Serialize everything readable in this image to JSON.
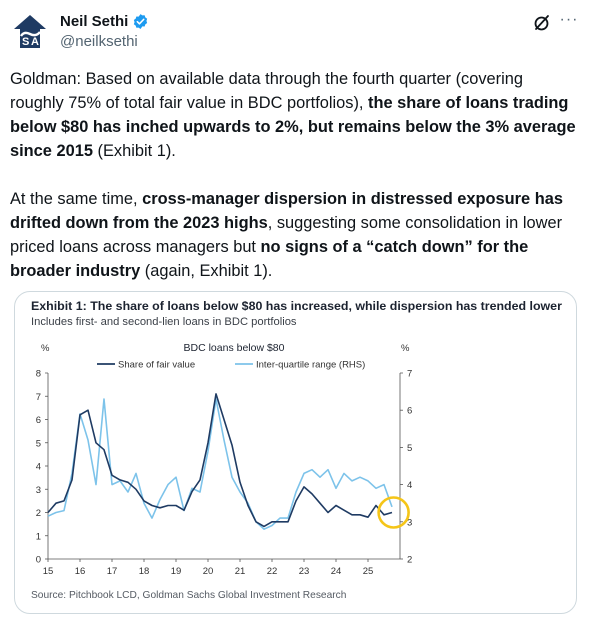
{
  "author": {
    "display_name": "Neil Sethi",
    "handle": "@neilksethi",
    "avatar_icon": "sa-logo-icon",
    "verified_color": "#1d9bf0"
  },
  "tweet": {
    "p1_seg1": "Goldman: Based on available data through the fourth quarter (covering roughly 75% of total fair value in BDC portfolios), ",
    "p1_bold1": "the share of loans trading below $80 has inched upwards to 2%, but remains below the 3% average since 2015",
    "p1_seg2": " (Exhibit 1).",
    "p2_seg1": "At the same time, ",
    "p2_bold1": "cross-manager dispersion in distressed exposure has drifted down from the 2023 highs",
    "p2_seg2": ", suggesting some consolidation in lower priced loans across managers but ",
    "p2_bold2": "no signs of a “catch down” for the broader industry",
    "p2_seg3": " (again, Exhibit 1)."
  },
  "exhibit": {
    "title": "Exhibit 1: The share of loans below $80 has increased, while dispersion has trended lower",
    "subtitle": "Includes first- and second-lien loans in BDC portfolios",
    "source": "Source: Pitchbook LCD, Goldman Sachs Global Investment Research"
  },
  "chart_data": {
    "type": "line",
    "title": "BDC loans below $80",
    "left_unit": "%",
    "right_unit": "%",
    "x_tick_labels": [
      "15",
      "16",
      "17",
      "18",
      "19",
      "20",
      "21",
      "22",
      "23",
      "24",
      "25"
    ],
    "x_range": [
      2015,
      2026
    ],
    "y_left_ticks": [
      "0",
      "1",
      "2",
      "3",
      "4",
      "5",
      "6",
      "7",
      "8"
    ],
    "y_left_range": [
      0,
      8
    ],
    "y_right_ticks": [
      "2",
      "3",
      "4",
      "5",
      "6",
      "7"
    ],
    "y_right_range": [
      2,
      7
    ],
    "grid": false,
    "legend_position": "top-center",
    "highlight": {
      "x": 2025.8,
      "y": 2.0,
      "color": "#f5c518"
    },
    "series": [
      {
        "name": "Share of fair value",
        "axis": "left",
        "color": "#1f3b63",
        "points": [
          [
            2015.0,
            2.0
          ],
          [
            2015.25,
            2.4
          ],
          [
            2015.5,
            2.5
          ],
          [
            2015.75,
            3.4
          ],
          [
            2016.0,
            6.2
          ],
          [
            2016.25,
            6.4
          ],
          [
            2016.5,
            5.0
          ],
          [
            2016.75,
            4.7
          ],
          [
            2017.0,
            3.6
          ],
          [
            2017.25,
            3.4
          ],
          [
            2017.5,
            3.3
          ],
          [
            2017.75,
            3.0
          ],
          [
            2018.0,
            2.5
          ],
          [
            2018.25,
            2.3
          ],
          [
            2018.5,
            2.2
          ],
          [
            2018.75,
            2.3
          ],
          [
            2019.0,
            2.3
          ],
          [
            2019.25,
            2.1
          ],
          [
            2019.5,
            2.9
          ],
          [
            2019.75,
            3.4
          ],
          [
            2020.0,
            5.0
          ],
          [
            2020.25,
            7.1
          ],
          [
            2020.5,
            6.0
          ],
          [
            2020.75,
            4.9
          ],
          [
            2021.0,
            3.3
          ],
          [
            2021.25,
            2.3
          ],
          [
            2021.5,
            1.6
          ],
          [
            2021.75,
            1.4
          ],
          [
            2022.0,
            1.6
          ],
          [
            2022.25,
            1.6
          ],
          [
            2022.5,
            1.6
          ],
          [
            2022.75,
            2.5
          ],
          [
            2023.0,
            3.1
          ],
          [
            2023.25,
            2.8
          ],
          [
            2023.5,
            2.4
          ],
          [
            2023.75,
            2.0
          ],
          [
            2024.0,
            2.3
          ],
          [
            2024.25,
            2.1
          ],
          [
            2024.5,
            1.9
          ],
          [
            2024.75,
            1.9
          ],
          [
            2025.0,
            1.8
          ],
          [
            2025.25,
            2.3
          ],
          [
            2025.5,
            1.9
          ],
          [
            2025.75,
            2.0
          ]
        ]
      },
      {
        "name": "Inter-quartile range (RHS)",
        "axis": "right",
        "color": "#7dc3ea",
        "points": [
          [
            2015.0,
            3.15
          ],
          [
            2015.25,
            3.25
          ],
          [
            2015.5,
            3.3
          ],
          [
            2015.75,
            4.3
          ],
          [
            2016.0,
            5.9
          ],
          [
            2016.25,
            5.2
          ],
          [
            2016.5,
            4.0
          ],
          [
            2016.75,
            6.3
          ],
          [
            2017.0,
            4.0
          ],
          [
            2017.25,
            4.1
          ],
          [
            2017.5,
            3.8
          ],
          [
            2017.75,
            4.3
          ],
          [
            2018.0,
            3.5
          ],
          [
            2018.25,
            3.1
          ],
          [
            2018.5,
            3.6
          ],
          [
            2018.75,
            4.0
          ],
          [
            2019.0,
            4.2
          ],
          [
            2019.25,
            3.3
          ],
          [
            2019.5,
            3.9
          ],
          [
            2019.75,
            3.8
          ],
          [
            2020.0,
            4.9
          ],
          [
            2020.25,
            6.3
          ],
          [
            2020.5,
            5.2
          ],
          [
            2020.75,
            4.2
          ],
          [
            2021.0,
            3.8
          ],
          [
            2021.25,
            3.5
          ],
          [
            2021.5,
            3.0
          ],
          [
            2021.75,
            2.8
          ],
          [
            2022.0,
            2.9
          ],
          [
            2022.25,
            3.1
          ],
          [
            2022.5,
            3.1
          ],
          [
            2022.75,
            3.8
          ],
          [
            2023.0,
            4.3
          ],
          [
            2023.25,
            4.4
          ],
          [
            2023.5,
            4.2
          ],
          [
            2023.75,
            4.4
          ],
          [
            2024.0,
            3.9
          ],
          [
            2024.25,
            4.3
          ],
          [
            2024.5,
            4.1
          ],
          [
            2024.75,
            4.2
          ],
          [
            2025.0,
            4.1
          ],
          [
            2025.25,
            3.9
          ],
          [
            2025.5,
            4.0
          ],
          [
            2025.75,
            3.4
          ]
        ]
      }
    ]
  }
}
